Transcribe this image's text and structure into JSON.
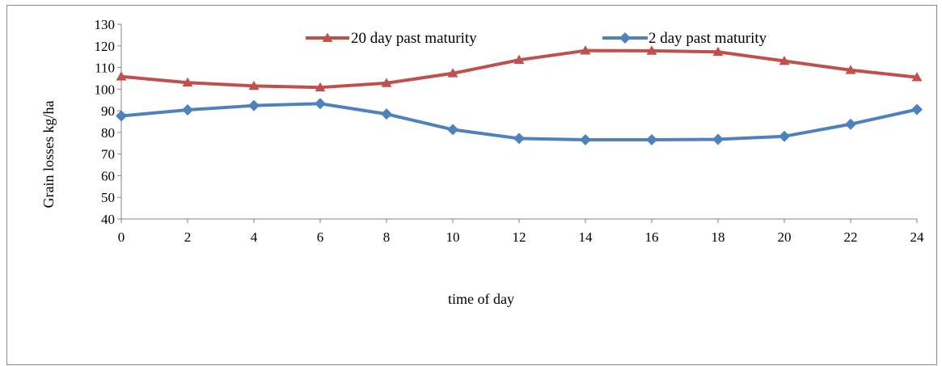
{
  "chart_data": {
    "type": "line",
    "title": "",
    "xlabel": "time of day",
    "ylabel": "Grain losses kg/ha",
    "x": [
      0,
      2,
      4,
      6,
      8,
      10,
      12,
      14,
      16,
      18,
      20,
      22,
      24
    ],
    "xlim": [
      0,
      24
    ],
    "ylim": [
      40,
      130
    ],
    "yticks": [
      40,
      50,
      60,
      70,
      80,
      90,
      100,
      110,
      120,
      130
    ],
    "grid": false,
    "legend_position": "top",
    "series": [
      {
        "name": "20 day past maturity",
        "color": "#c0504d",
        "marker": "triangle",
        "values": [
          105.8,
          103.0,
          101.5,
          100.8,
          102.8,
          107.3,
          113.5,
          117.8,
          117.7,
          117.2,
          113.0,
          108.8,
          105.5
        ]
      },
      {
        "name": "2 day past maturity",
        "color": "#4f81bd",
        "marker": "diamond",
        "values": [
          87.6,
          90.4,
          92.4,
          93.3,
          88.5,
          81.3,
          77.2,
          76.6,
          76.6,
          76.8,
          78.2,
          83.8,
          90.6
        ]
      }
    ]
  }
}
